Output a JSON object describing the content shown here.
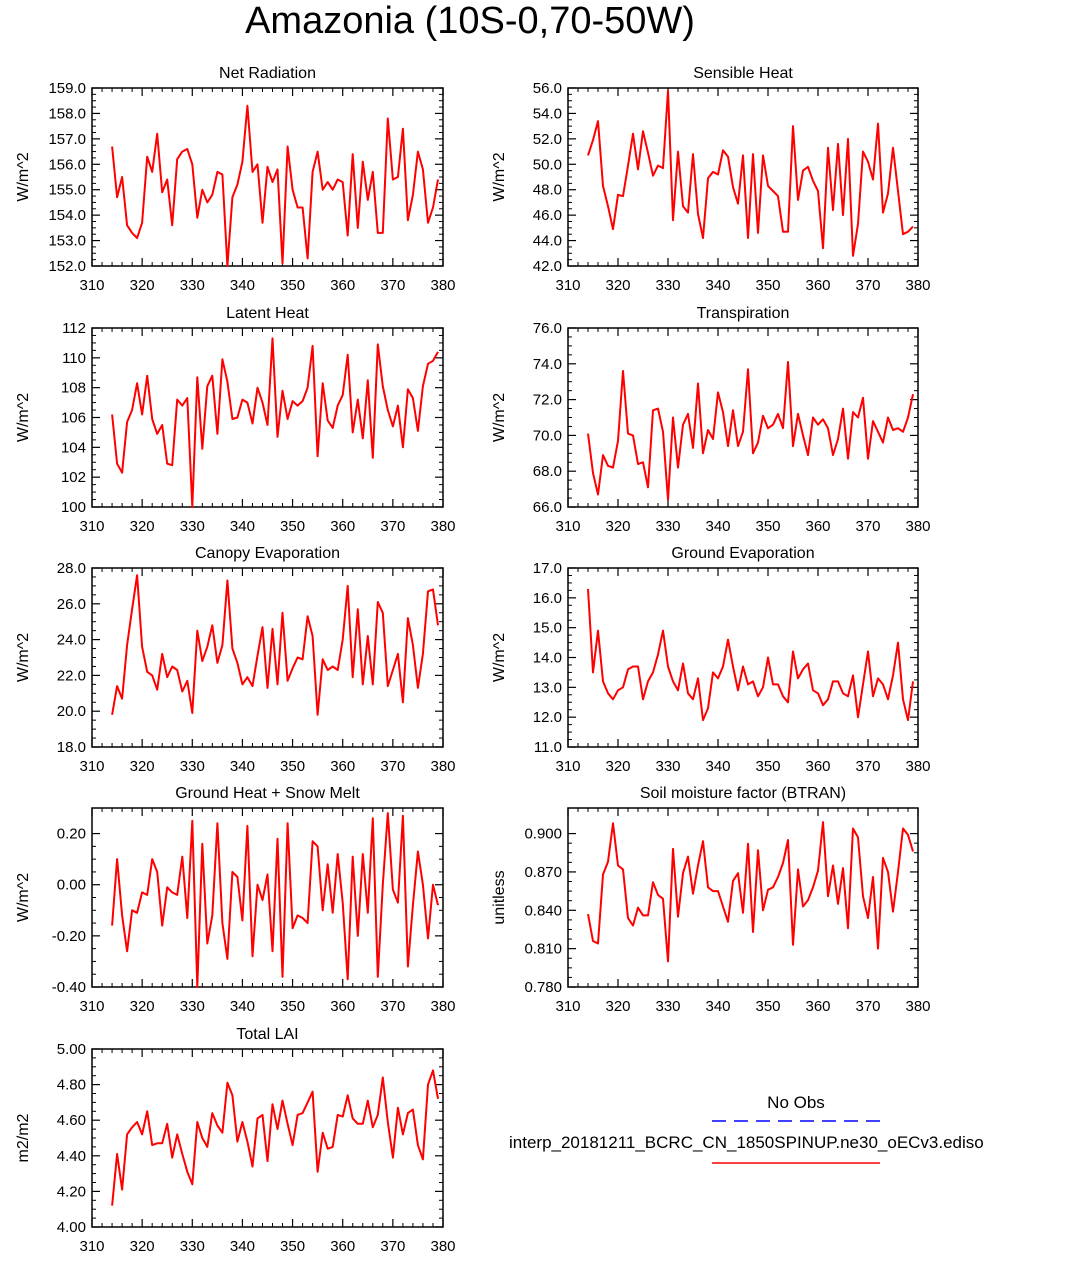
{
  "title": "Amazonia (10S-0,70-50W)",
  "style": {
    "line_color": "#ff0000",
    "obs_color": "#0000ff",
    "axis_color": "#000000"
  },
  "legend": {
    "obs_label": "No Obs",
    "model_label": "interp_20181211_BCRC_CN_1850SPINUP.ne30_oECv3.ediso"
  },
  "chart_data": [
    {
      "type": "line",
      "title": "Net Radiation",
      "ylabel": "W/m^2",
      "xlim": [
        310,
        380
      ],
      "ylim": [
        152,
        159
      ],
      "xticks": [
        "310",
        "320",
        "330",
        "340",
        "350",
        "360",
        "370",
        "380"
      ],
      "yticks": [
        "152.0",
        "153.0",
        "154.0",
        "155.0",
        "156.0",
        "157.0",
        "158.0",
        "159.0"
      ],
      "x_start": 314,
      "values": [
        156.7,
        154.7,
        155.5,
        153.6,
        153.3,
        153.1,
        153.7,
        156.3,
        155.7,
        157.2,
        154.9,
        155.4,
        153.6,
        156.2,
        156.5,
        156.6,
        156.0,
        153.9,
        155.0,
        154.5,
        154.8,
        155.7,
        155.6,
        152.0,
        154.7,
        155.2,
        156.1,
        158.3,
        155.7,
        156.0,
        153.7,
        155.9,
        155.3,
        155.8,
        152.1,
        156.7,
        155.0,
        154.3,
        154.3,
        152.3,
        155.7,
        156.5,
        155.0,
        155.3,
        155.0,
        155.4,
        155.3,
        153.2,
        156.4,
        153.5,
        156.1,
        154.6,
        155.7,
        153.3,
        153.3,
        157.8,
        155.4,
        155.5,
        157.4,
        153.8,
        154.8,
        156.5,
        155.8,
        153.7,
        154.3,
        155.4
      ]
    },
    {
      "type": "line",
      "title": "Sensible Heat",
      "ylabel": "W/m^2",
      "xlim": [
        310,
        380
      ],
      "ylim": [
        42,
        56
      ],
      "xticks": [
        "310",
        "320",
        "330",
        "340",
        "350",
        "360",
        "370",
        "380"
      ],
      "yticks": [
        "42.0",
        "44.0",
        "46.0",
        "48.0",
        "50.0",
        "52.0",
        "54.0",
        "56.0"
      ],
      "x_start": 314,
      "values": [
        50.7,
        51.9,
        53.4,
        48.3,
        46.7,
        44.9,
        47.6,
        47.5,
        49.9,
        52.4,
        49.6,
        52.6,
        50.9,
        49.1,
        49.9,
        49.7,
        55.8,
        45.6,
        51.0,
        46.7,
        46.2,
        50.8,
        46.1,
        44.2,
        48.9,
        49.4,
        49.2,
        51.1,
        50.6,
        48.2,
        46.9,
        50.7,
        44.2,
        50.8,
        44.6,
        50.7,
        48.3,
        47.9,
        47.5,
        44.7,
        44.7,
        53.0,
        47.2,
        49.5,
        49.8,
        48.7,
        47.9,
        43.4,
        51.3,
        46.4,
        51.6,
        46.0,
        52.0,
        42.8,
        45.3,
        51.0,
        50.2,
        48.8,
        53.2,
        46.2,
        47.7,
        51.3,
        47.9,
        44.5,
        44.7,
        45.1
      ]
    },
    {
      "type": "line",
      "title": "Latent Heat",
      "ylabel": "W/m^2",
      "xlim": [
        310,
        380
      ],
      "ylim": [
        100,
        112
      ],
      "xticks": [
        "310",
        "320",
        "330",
        "340",
        "350",
        "360",
        "370",
        "380"
      ],
      "yticks": [
        "100",
        "102",
        "104",
        "106",
        "108",
        "110",
        "112"
      ],
      "x_start": 314,
      "values": [
        106.2,
        102.9,
        102.3,
        105.7,
        106.5,
        108.3,
        106.2,
        108.8,
        105.9,
        104.9,
        105.5,
        102.9,
        102.8,
        107.2,
        106.8,
        107.3,
        100.0,
        108.7,
        103.9,
        108.1,
        108.8,
        104.9,
        109.9,
        108.4,
        105.9,
        106.0,
        107.2,
        107.0,
        105.6,
        108.0,
        107.0,
        105.5,
        111.3,
        104.7,
        107.8,
        105.9,
        107.1,
        106.8,
        107.1,
        108.0,
        110.8,
        103.4,
        108.3,
        105.8,
        105.3,
        106.8,
        107.5,
        110.2,
        105.0,
        107.2,
        104.6,
        108.5,
        103.3,
        110.9,
        108.1,
        106.5,
        105.4,
        106.8,
        104.0,
        107.9,
        107.3,
        105.1,
        108.1,
        109.6,
        109.8,
        110.4
      ]
    },
    {
      "type": "line",
      "title": "Transpiration",
      "ylabel": "W/m^2",
      "xlim": [
        310,
        380
      ],
      "ylim": [
        66,
        76
      ],
      "xticks": [
        "310",
        "320",
        "330",
        "340",
        "350",
        "360",
        "370",
        "380"
      ],
      "yticks": [
        "66.0",
        "68.0",
        "70.0",
        "72.0",
        "74.0",
        "76.0"
      ],
      "x_start": 314,
      "values": [
        70.1,
        67.9,
        66.7,
        68.9,
        68.3,
        68.2,
        69.7,
        73.6,
        70.1,
        70.0,
        68.4,
        68.5,
        67.1,
        71.4,
        71.5,
        70.2,
        66.4,
        71.0,
        68.2,
        70.6,
        71.2,
        69.3,
        72.9,
        69.0,
        70.3,
        69.8,
        72.4,
        71.3,
        69.4,
        71.4,
        69.4,
        70.2,
        73.7,
        69.0,
        69.6,
        71.1,
        70.4,
        70.6,
        71.2,
        70.4,
        74.1,
        69.4,
        71.2,
        70.0,
        68.9,
        71.0,
        70.6,
        70.9,
        70.4,
        68.9,
        69.8,
        71.5,
        68.7,
        71.3,
        71.0,
        72.1,
        68.7,
        70.8,
        70.2,
        69.6,
        71.0,
        70.3,
        70.4,
        70.2,
        71.0,
        72.3
      ]
    },
    {
      "type": "line",
      "title": "Canopy Evaporation",
      "ylabel": "W/m^2",
      "xlim": [
        310,
        380
      ],
      "ylim": [
        18,
        28
      ],
      "xticks": [
        "310",
        "320",
        "330",
        "340",
        "350",
        "360",
        "370",
        "380"
      ],
      "yticks": [
        "18.0",
        "20.0",
        "22.0",
        "24.0",
        "26.0",
        "28.0"
      ],
      "x_start": 314,
      "values": [
        19.8,
        21.4,
        20.7,
        23.7,
        25.7,
        27.6,
        23.6,
        22.2,
        22.0,
        21.2,
        23.2,
        21.9,
        22.5,
        22.3,
        21.1,
        21.7,
        19.9,
        24.5,
        22.8,
        23.6,
        24.8,
        22.7,
        23.7,
        27.3,
        23.5,
        22.7,
        21.5,
        21.9,
        21.4,
        23.1,
        24.7,
        21.3,
        24.6,
        21.5,
        25.5,
        21.7,
        22.4,
        23.0,
        22.9,
        25.3,
        24.2,
        19.8,
        22.9,
        22.3,
        22.5,
        22.3,
        24.0,
        27.0,
        21.9,
        25.7,
        21.5,
        24.2,
        21.5,
        26.1,
        25.5,
        21.4,
        22.3,
        23.2,
        20.5,
        25.2,
        23.7,
        21.3,
        23.2,
        26.7,
        26.8,
        24.8
      ]
    },
    {
      "type": "line",
      "title": "Ground Evaporation",
      "ylabel": "W/m^2",
      "xlim": [
        310,
        380
      ],
      "ylim": [
        11,
        17
      ],
      "xticks": [
        "310",
        "320",
        "330",
        "340",
        "350",
        "360",
        "370",
        "380"
      ],
      "yticks": [
        "11.0",
        "12.0",
        "13.0",
        "14.0",
        "15.0",
        "16.0",
        "17.0"
      ],
      "x_start": 314,
      "values": [
        16.3,
        13.5,
        14.9,
        13.2,
        12.8,
        12.6,
        12.9,
        13.0,
        13.6,
        13.7,
        13.7,
        12.6,
        13.2,
        13.5,
        14.1,
        14.9,
        13.7,
        13.2,
        12.9,
        13.8,
        12.8,
        12.6,
        13.3,
        11.9,
        12.3,
        13.5,
        13.3,
        13.7,
        14.6,
        13.7,
        12.9,
        13.7,
        13.1,
        13.2,
        12.7,
        13.0,
        14.0,
        13.1,
        13.1,
        12.7,
        12.5,
        14.2,
        13.3,
        13.6,
        13.8,
        12.9,
        12.8,
        12.4,
        12.6,
        13.2,
        13.2,
        12.8,
        12.7,
        13.4,
        12.0,
        13.1,
        14.2,
        12.7,
        13.3,
        13.1,
        12.6,
        13.4,
        14.5,
        12.6,
        11.9,
        13.2
      ]
    },
    {
      "type": "line",
      "title": "Ground Heat + Snow Melt",
      "ylabel": "W/m^2",
      "xlim": [
        310,
        380
      ],
      "ylim": [
        -0.4,
        0.3
      ],
      "xticks": [
        "310",
        "320",
        "330",
        "340",
        "350",
        "360",
        "370",
        "380"
      ],
      "yticks": [
        "-0.40",
        "-0.20",
        "0.00",
        "0.20"
      ],
      "x_start": 314,
      "values": [
        -0.16,
        0.1,
        -0.12,
        -0.26,
        -0.1,
        -0.11,
        -0.03,
        -0.04,
        0.1,
        0.05,
        -0.16,
        -0.01,
        -0.03,
        -0.04,
        0.11,
        -0.13,
        0.25,
        -0.4,
        0.16,
        -0.23,
        -0.12,
        0.24,
        -0.15,
        -0.29,
        0.05,
        0.03,
        -0.14,
        0.23,
        -0.28,
        0.0,
        -0.06,
        0.04,
        -0.26,
        0.18,
        -0.36,
        0.24,
        -0.17,
        -0.12,
        -0.13,
        -0.15,
        0.17,
        0.15,
        -0.1,
        0.08,
        -0.11,
        0.12,
        -0.07,
        -0.37,
        0.11,
        -0.2,
        0.12,
        -0.11,
        0.26,
        -0.36,
        0.0,
        0.28,
        -0.02,
        -0.07,
        0.27,
        -0.32,
        -0.08,
        0.13,
        0.0,
        -0.21,
        0.0,
        -0.08
      ]
    },
    {
      "type": "line",
      "title": "Soil moisture factor (BTRAN)",
      "ylabel": "unitless",
      "xlim": [
        310,
        380
      ],
      "ylim": [
        0.78,
        0.92
      ],
      "xticks": [
        "310",
        "320",
        "330",
        "340",
        "350",
        "360",
        "370",
        "380"
      ],
      "yticks": [
        "0.780",
        "0.810",
        "0.840",
        "0.870",
        "0.900"
      ],
      "x_start": 314,
      "values": [
        0.837,
        0.816,
        0.814,
        0.868,
        0.878,
        0.908,
        0.875,
        0.872,
        0.834,
        0.828,
        0.842,
        0.836,
        0.836,
        0.862,
        0.852,
        0.849,
        0.8,
        0.888,
        0.835,
        0.869,
        0.882,
        0.853,
        0.875,
        0.894,
        0.858,
        0.855,
        0.855,
        0.843,
        0.831,
        0.863,
        0.869,
        0.838,
        0.892,
        0.823,
        0.887,
        0.84,
        0.856,
        0.858,
        0.866,
        0.877,
        0.895,
        0.813,
        0.872,
        0.843,
        0.848,
        0.858,
        0.871,
        0.909,
        0.851,
        0.875,
        0.845,
        0.873,
        0.826,
        0.904,
        0.897,
        0.851,
        0.834,
        0.866,
        0.81,
        0.881,
        0.87,
        0.839,
        0.87,
        0.904,
        0.899,
        0.886
      ]
    },
    {
      "type": "line",
      "title": "Total LAI",
      "ylabel": "m2/m2",
      "xlim": [
        310,
        380
      ],
      "ylim": [
        4.0,
        5.0
      ],
      "xticks": [
        "310",
        "320",
        "330",
        "340",
        "350",
        "360",
        "370",
        "380"
      ],
      "yticks": [
        "4.00",
        "4.20",
        "4.40",
        "4.60",
        "4.80",
        "5.00"
      ],
      "x_start": 314,
      "values": [
        4.12,
        4.41,
        4.21,
        4.52,
        4.56,
        4.59,
        4.52,
        4.65,
        4.46,
        4.47,
        4.47,
        4.58,
        4.39,
        4.52,
        4.41,
        4.31,
        4.24,
        4.59,
        4.5,
        4.45,
        4.64,
        4.57,
        4.53,
        4.81,
        4.74,
        4.48,
        4.59,
        4.48,
        4.34,
        4.61,
        4.63,
        4.37,
        4.69,
        4.55,
        4.71,
        4.58,
        4.46,
        4.63,
        4.64,
        4.7,
        4.76,
        4.31,
        4.53,
        4.44,
        4.45,
        4.63,
        4.62,
        4.74,
        4.61,
        4.58,
        4.58,
        4.71,
        4.56,
        4.63,
        4.84,
        4.59,
        4.39,
        4.67,
        4.52,
        4.64,
        4.66,
        4.46,
        4.38,
        4.8,
        4.88,
        4.72
      ]
    }
  ]
}
